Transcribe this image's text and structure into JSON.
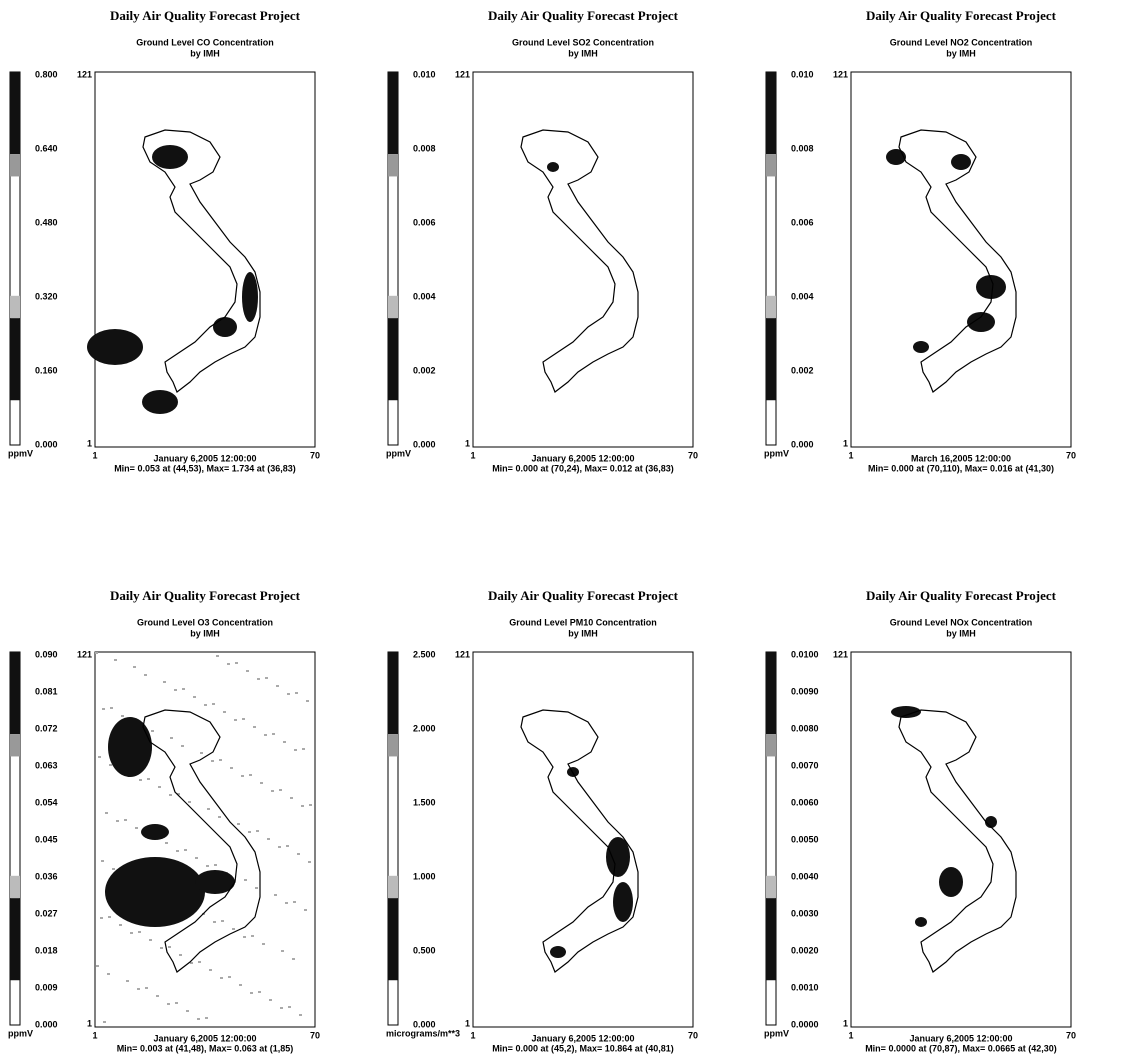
{
  "panels": [
    {
      "title": "Daily Air Quality Forecast Project",
      "subtitle": "Ground Level CO Concentration",
      "by": "by IMH",
      "scale_labels": [
        "0.800",
        "0.640",
        "0.480",
        "0.320",
        "0.160",
        "0.000"
      ],
      "unit": "ppmV",
      "y_top": "121",
      "y_bottom": "1",
      "x_left": "1",
      "x_right": "70",
      "date": "January 6,2005 12:00:00",
      "minmax": "Min= 0.053 at (44,53), Max= 1.734 at (36,83)"
    },
    {
      "title": "Daily Air Quality Forecast Project",
      "subtitle": "Ground Level SO2 Concentration",
      "by": "by IMH",
      "scale_labels": [
        "0.010",
        "0.008",
        "0.006",
        "0.004",
        "0.002",
        "0.000"
      ],
      "unit": "ppmV",
      "y_top": "121",
      "y_bottom": "1",
      "x_left": "1",
      "x_right": "70",
      "date": "January 6,2005 12:00:00",
      "minmax": "Min= 0.000 at (70,24), Max= 0.012 at (36,83)"
    },
    {
      "title": "Daily Air Quality Forecast Project",
      "subtitle": "Ground Level NO2 Concentration",
      "by": "by IMH",
      "scale_labels": [
        "0.010",
        "0.008",
        "0.006",
        "0.004",
        "0.002",
        "0.000"
      ],
      "unit": "ppmV",
      "y_top": "121",
      "y_bottom": "1",
      "x_left": "1",
      "x_right": "70",
      "date": "March 16,2005 12:00:00",
      "minmax": "Min= 0.000 at (70,110), Max= 0.016 at (41,30)"
    },
    {
      "title": "Daily Air Quality Forecast Project",
      "subtitle": "Ground Level O3 Concentration",
      "by": "by IMH",
      "scale_labels": [
        "0.090",
        "0.081",
        "0.072",
        "0.063",
        "0.054",
        "0.045",
        "0.036",
        "0.027",
        "0.018",
        "0.009",
        "0.000"
      ],
      "unit": "ppmV",
      "y_top": "121",
      "y_bottom": "1",
      "x_left": "1",
      "x_right": "70",
      "date": "January 6,2005 12:00:00",
      "minmax": "Min= 0.003 at (41,48), Max= 0.063 at (1,85)"
    },
    {
      "title": "Daily Air Quality Forecast Project",
      "subtitle": "Ground Level PM10 Concentration",
      "by": "by IMH",
      "scale_labels": [
        "2.500",
        "2.000",
        "1.500",
        "1.000",
        "0.500",
        "0.000"
      ],
      "unit": "micrograms/m**3",
      "y_top": "121",
      "y_bottom": "1",
      "x_left": "1",
      "x_right": "70",
      "date": "January 6,2005 12:00:00",
      "minmax": "Min= 0.000 at (45,2), Max= 10.864 at (40,81)"
    },
    {
      "title": "Daily Air Quality Forecast Project",
      "subtitle": "Ground Level NOx Concentration",
      "by": "by IMH",
      "scale_labels": [
        "0.0100",
        "0.0090",
        "0.0080",
        "0.0070",
        "0.0060",
        "0.0050",
        "0.0040",
        "0.0030",
        "0.0020",
        "0.0010",
        "0.0000"
      ],
      "unit": "ppmV",
      "y_top": "121",
      "y_bottom": "1",
      "x_left": "1",
      "x_right": "70",
      "date": "January 6,2005 12:00:00",
      "minmax": "Min= 0.0000 at (70,87), Max= 0.0665 at (42,30)"
    }
  ]
}
